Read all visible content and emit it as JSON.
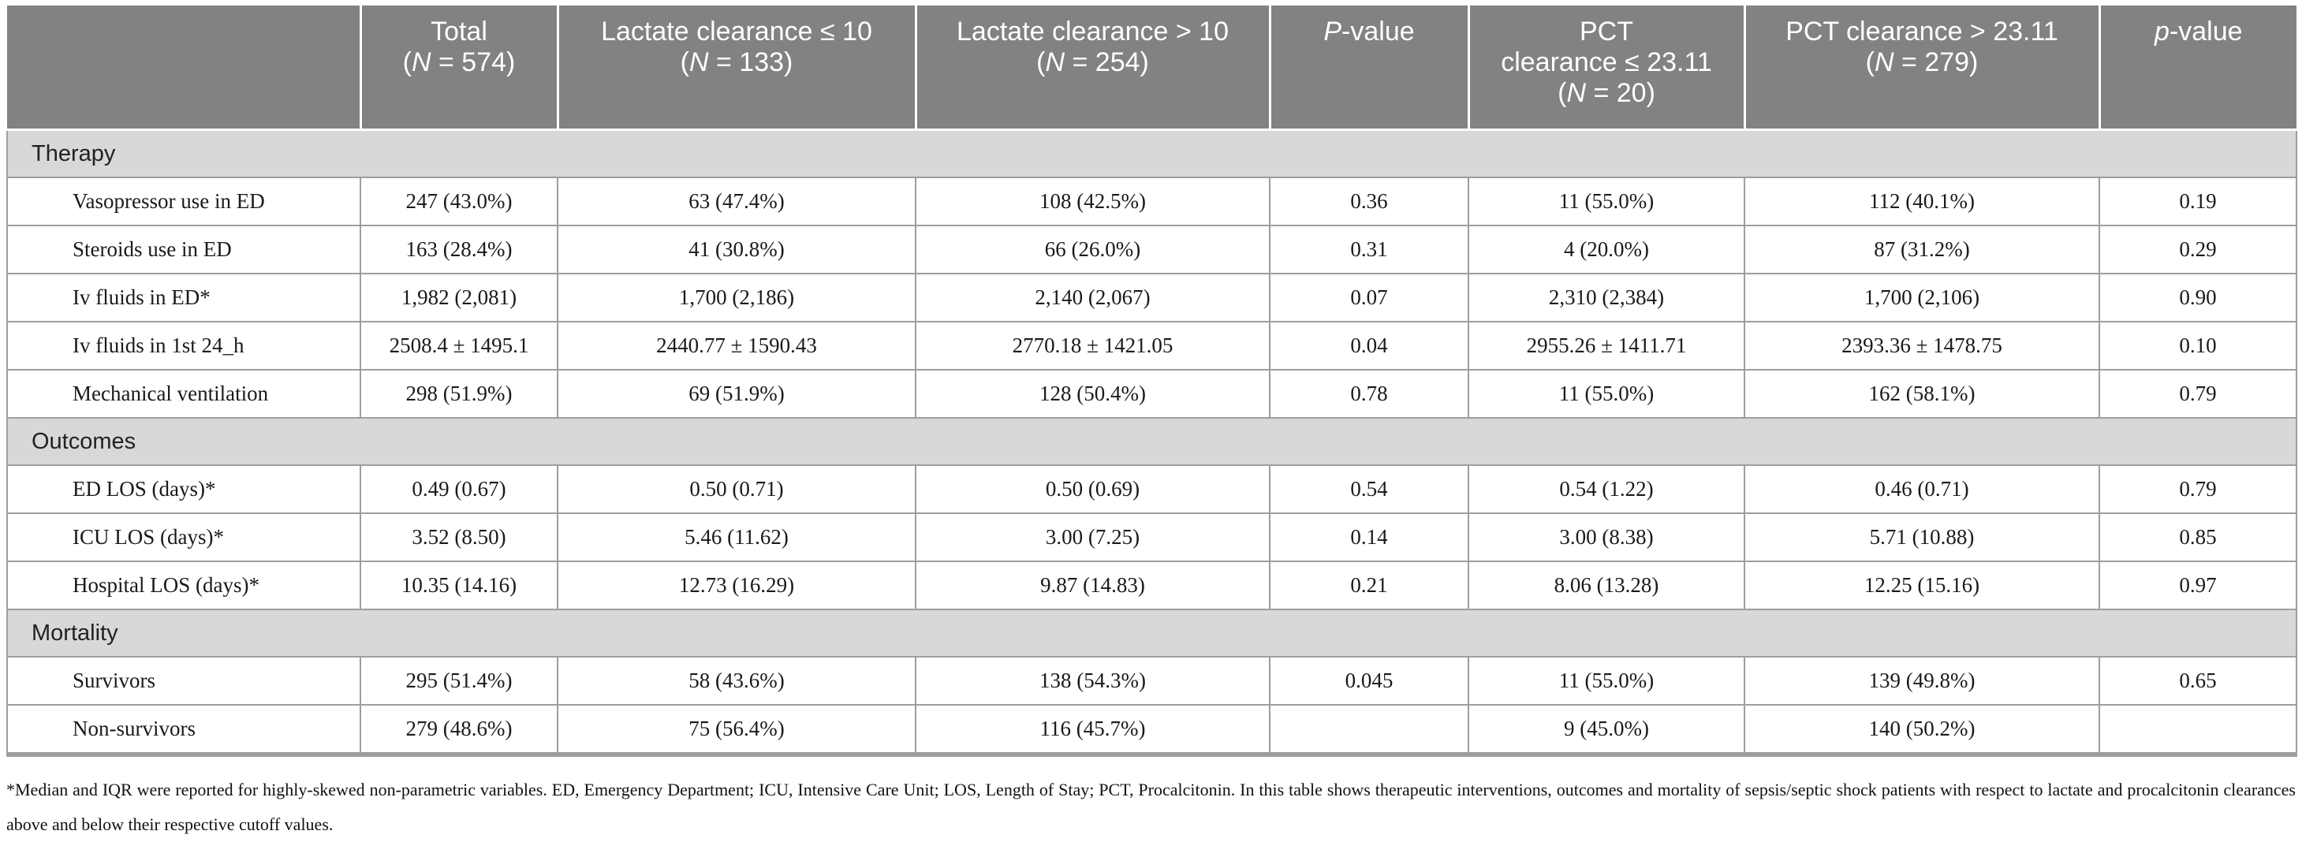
{
  "colors": {
    "header_bg": "#828282",
    "header_text": "#ffffff",
    "section_bg": "#d8d8d8",
    "border": "#9e9e9e",
    "text": "#1a1a1a"
  },
  "table": {
    "header_cells": [
      {
        "lines": []
      },
      {
        "lines": [
          [
            {
              "t": "Total"
            }
          ],
          [
            {
              "t": "("
            },
            {
              "t": "N",
              "i": true
            },
            {
              "t": " = 574)"
            }
          ]
        ]
      },
      {
        "lines": [
          [
            {
              "t": "Lactate clearance ≤ 10"
            }
          ],
          [
            {
              "t": "("
            },
            {
              "t": "N",
              "i": true
            },
            {
              "t": " = 133)"
            }
          ]
        ]
      },
      {
        "lines": [
          [
            {
              "t": "Lactate clearance > 10"
            }
          ],
          [
            {
              "t": "("
            },
            {
              "t": "N",
              "i": true
            },
            {
              "t": " = 254)"
            }
          ]
        ]
      },
      {
        "lines": [
          [
            {
              "t": "P",
              "i": true
            },
            {
              "t": "-value"
            }
          ]
        ]
      },
      {
        "lines": [
          [
            {
              "t": "PCT"
            }
          ],
          [
            {
              "t": "clearance ≤ 23.11"
            }
          ],
          [
            {
              "t": "("
            },
            {
              "t": "N",
              "i": true
            },
            {
              "t": " = 20)"
            }
          ]
        ]
      },
      {
        "lines": [
          [
            {
              "t": "PCT clearance > 23.11"
            }
          ],
          [
            {
              "t": "("
            },
            {
              "t": "N",
              "i": true
            },
            {
              "t": " = 279)"
            }
          ]
        ]
      },
      {
        "lines": [
          [
            {
              "t": "p",
              "i": true
            },
            {
              "t": "-value"
            }
          ]
        ]
      }
    ],
    "sections": [
      {
        "title": "Therapy",
        "rows": [
          {
            "label": "Vasopressor use in ED",
            "values": [
              "247 (43.0%)",
              "63 (47.4%)",
              "108 (42.5%)",
              "0.36",
              "11 (55.0%)",
              "112 (40.1%)",
              "0.19"
            ]
          },
          {
            "label": "Steroids use in ED",
            "values": [
              "163 (28.4%)",
              "41 (30.8%)",
              "66 (26.0%)",
              "0.31",
              "4 (20.0%)",
              "87 (31.2%)",
              "0.29"
            ]
          },
          {
            "label": "Iv fluids in ED*",
            "values": [
              "1,982 (2,081)",
              "1,700 (2,186)",
              "2,140 (2,067)",
              "0.07",
              "2,310 (2,384)",
              "1,700 (2,106)",
              "0.90"
            ]
          },
          {
            "label": "Iv fluids in 1st 24_h",
            "values": [
              "2508.4 ± 1495.1",
              "2440.77 ± 1590.43",
              "2770.18 ± 1421.05",
              "0.04",
              "2955.26 ± 1411.71",
              "2393.36 ± 1478.75",
              "0.10"
            ]
          },
          {
            "label": "Mechanical ventilation",
            "values": [
              "298 (51.9%)",
              "69 (51.9%)",
              "128 (50.4%)",
              "0.78",
              "11 (55.0%)",
              "162 (58.1%)",
              "0.79"
            ]
          }
        ]
      },
      {
        "title": "Outcomes",
        "rows": [
          {
            "label": "ED LOS (days)*",
            "values": [
              "0.49 (0.67)",
              "0.50 (0.71)",
              "0.50 (0.69)",
              "0.54",
              "0.54 (1.22)",
              "0.46 (0.71)",
              "0.79"
            ]
          },
          {
            "label": "ICU LOS (days)*",
            "values": [
              "3.52 (8.50)",
              "5.46 (11.62)",
              "3.00 (7.25)",
              "0.14",
              "3.00 (8.38)",
              "5.71 (10.88)",
              "0.85"
            ]
          },
          {
            "label": "Hospital LOS (days)*",
            "values": [
              "10.35 (14.16)",
              "12.73 (16.29)",
              "9.87 (14.83)",
              "0.21",
              "8.06 (13.28)",
              "12.25 (15.16)",
              "0.97"
            ]
          }
        ]
      },
      {
        "title": "Mortality",
        "rows": [
          {
            "label": "Survivors",
            "values": [
              "295 (51.4%)",
              "58 (43.6%)",
              "138 (54.3%)",
              "0.045",
              "11 (55.0%)",
              "139 (49.8%)",
              "0.65"
            ]
          },
          {
            "label": "Non-survivors",
            "values": [
              "279 (48.6%)",
              "75 (56.4%)",
              "116 (45.7%)",
              "",
              "9 (45.0%)",
              "140 (50.2%)",
              ""
            ]
          }
        ]
      }
    ]
  },
  "footnote": "*Median and IQR were reported for highly-skewed non-parametric variables. ED, Emergency Department; ICU, Intensive Care Unit; LOS, Length of Stay; PCT, Procalcitonin. In this table shows therapeutic interventions, outcomes and mortality of sepsis/septic shock patients with respect to lactate and procalcitonin clearances above and below their respective cutoff values."
}
